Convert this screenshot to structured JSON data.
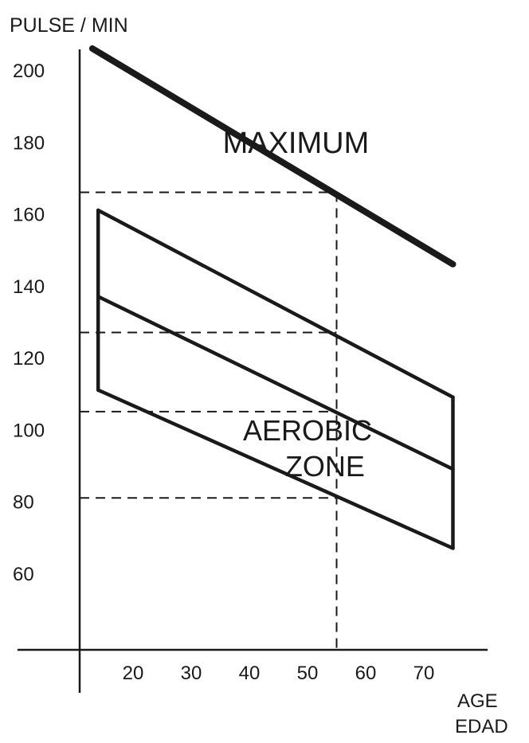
{
  "chart_data": {
    "type": "line",
    "title": "",
    "ylabel": "PULSE / MIN",
    "xlabel_lines": [
      "AGE",
      "EDAD"
    ],
    "xlim": [
      10,
      77
    ],
    "ylim": [
      40,
      210
    ],
    "x_ticks": [
      20,
      30,
      40,
      50,
      60,
      70
    ],
    "y_ticks": [
      60,
      80,
      100,
      120,
      140,
      160,
      180,
      200
    ],
    "grid": false,
    "series": [
      {
        "name": "MAXIMUM",
        "style": "bold",
        "x": [
          13,
          75
        ],
        "y": [
          206,
          146
        ]
      },
      {
        "name": "",
        "style": "normal",
        "x": [
          14,
          75
        ],
        "y": [
          161,
          109
        ]
      },
      {
        "name": "",
        "style": "normal",
        "x": [
          14,
          75
        ],
        "y": [
          137,
          89
        ]
      },
      {
        "name": "",
        "style": "normal",
        "x": [
          14,
          75
        ],
        "y": [
          111,
          67
        ]
      }
    ],
    "zone_sides": [
      {
        "x": 14,
        "y": [
          111,
          161
        ]
      },
      {
        "x": 75,
        "y": [
          67,
          109
        ]
      }
    ],
    "reference_lines": {
      "x": 55,
      "y": [
        166,
        127,
        105,
        81
      ]
    },
    "annotations": [
      {
        "text": "MAXIMUM",
        "x": 48,
        "y": 177
      },
      {
        "text": "AEROBIC",
        "x": 50,
        "y": 97
      },
      {
        "text": "ZONE",
        "x": 53,
        "y": 87
      }
    ],
    "colors": {
      "ink": "#1a1a1a",
      "background": "#ffffff"
    }
  }
}
